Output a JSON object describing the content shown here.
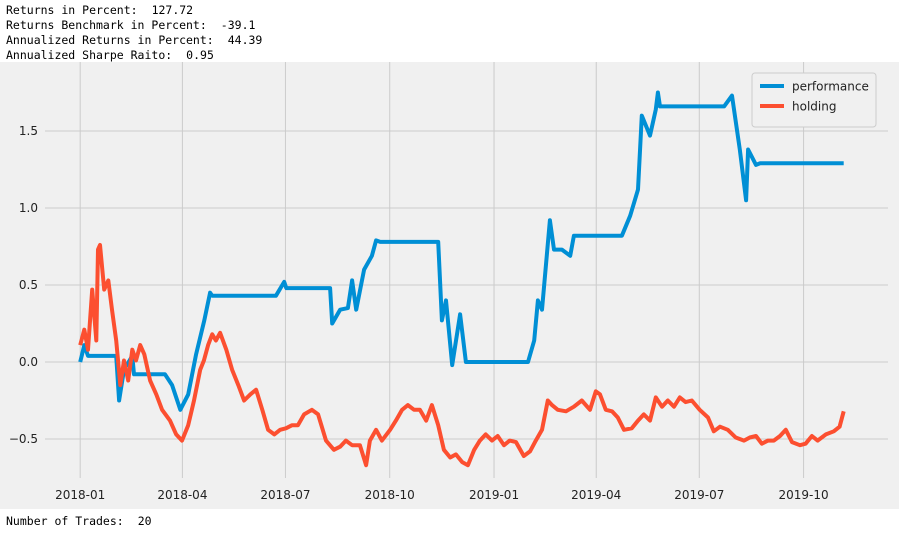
{
  "stats": [
    {
      "label": "Returns in Percent:",
      "value": 127.72
    },
    {
      "label": "Returns Benchmark in Percent:",
      "value": -39.1
    },
    {
      "label": "Annualized Returns in Percent:",
      "value": 44.39
    },
    {
      "label": "Annualized Sharpe Raito:",
      "value": 0.95
    }
  ],
  "footer": {
    "label": "Number of Trades:",
    "value": 20
  },
  "chart_data": {
    "type": "line",
    "grid": true,
    "legend": "upper right",
    "xlim": [
      2017.915,
      2019.952
    ],
    "ylim": [
      -0.753,
      1.948
    ],
    "xticks": [
      {
        "value": 2018.0,
        "label": "2018-01"
      },
      {
        "value": 2018.247,
        "label": "2018-04"
      },
      {
        "value": 2018.496,
        "label": "2018-07"
      },
      {
        "value": 2018.748,
        "label": "2018-10"
      },
      {
        "value": 2019.0,
        "label": "2019-01"
      },
      {
        "value": 2019.247,
        "label": "2019-04"
      },
      {
        "value": 2019.496,
        "label": "2019-07"
      },
      {
        "value": 2019.748,
        "label": "2019-10"
      }
    ],
    "yticks": [
      {
        "value": -0.5,
        "label": "−0.5"
      },
      {
        "value": 0,
        "label": "0.0"
      },
      {
        "value": 0.5,
        "label": "0.5"
      },
      {
        "value": 1,
        "label": "1.0"
      },
      {
        "value": 1.5,
        "label": "1.5"
      }
    ],
    "series": [
      {
        "name": "performance",
        "color": "#008fd5",
        "x": [
          2018.0,
          2018.01,
          2018.019,
          2018.087,
          2018.094,
          2018.106,
          2018.126,
          2018.13,
          2018.205,
          2018.222,
          2018.242,
          2018.261,
          2018.28,
          2018.3,
          2018.314,
          2018.319,
          2018.473,
          2018.493,
          2018.498,
          2018.604,
          2018.609,
          2018.628,
          2018.647,
          2018.657,
          2018.667,
          2018.686,
          2018.705,
          2018.715,
          2018.725,
          2018.865,
          2018.874,
          2018.884,
          2018.899,
          2018.918,
          2018.932,
          2019.082,
          2019.097,
          2019.106,
          2019.116,
          2019.135,
          2019.145,
          2019.164,
          2019.184,
          2019.193,
          2019.309,
          2019.329,
          2019.348,
          2019.357,
          2019.377,
          2019.391,
          2019.396,
          2019.401,
          2019.556,
          2019.575,
          2019.594,
          2019.609,
          2019.614,
          2019.633,
          2019.643,
          2019.845
        ],
        "values": [
          0.0,
          0.11,
          0.04,
          0.04,
          -0.25,
          -0.05,
          0.04,
          -0.08,
          -0.08,
          -0.15,
          -0.31,
          -0.21,
          0.05,
          0.27,
          0.45,
          0.43,
          0.43,
          0.52,
          0.48,
          0.48,
          0.25,
          0.34,
          0.35,
          0.53,
          0.34,
          0.6,
          0.69,
          0.79,
          0.78,
          0.78,
          0.27,
          0.4,
          -0.02,
          0.31,
          0.0,
          0.0,
          0.14,
          0.4,
          0.34,
          0.92,
          0.73,
          0.73,
          0.69,
          0.82,
          0.82,
          0.95,
          1.12,
          1.6,
          1.47,
          1.64,
          1.75,
          1.66,
          1.66,
          1.73,
          1.38,
          1.05,
          1.38,
          1.28,
          1.29,
          1.29
        ]
      },
      {
        "name": "holding",
        "color": "#fc4f30",
        "x": [
          2018.0,
          2018.01,
          2018.019,
          2018.029,
          2018.039,
          2018.043,
          2018.048,
          2018.058,
          2018.068,
          2018.077,
          2018.087,
          2018.097,
          2018.106,
          2018.116,
          2018.126,
          2018.135,
          2018.145,
          2018.155,
          2018.169,
          2018.184,
          2018.198,
          2018.217,
          2018.232,
          2018.246,
          2018.261,
          2018.275,
          2018.29,
          2018.299,
          2018.309,
          2018.319,
          2018.328,
          2018.338,
          2018.353,
          2018.367,
          2018.382,
          2018.396,
          2018.411,
          2018.425,
          2018.44,
          2018.454,
          2018.469,
          2018.483,
          2018.497,
          2018.512,
          2018.526,
          2018.541,
          2018.56,
          2018.575,
          2018.594,
          2018.613,
          2018.628,
          2018.642,
          2018.657,
          2018.676,
          2018.691,
          2018.7,
          2018.715,
          2018.729,
          2018.749,
          2018.763,
          2018.778,
          2018.792,
          2018.807,
          2018.821,
          2018.836,
          2018.85,
          2018.865,
          2018.879,
          2018.894,
          2018.908,
          2018.923,
          2018.937,
          2018.952,
          2018.966,
          2018.98,
          2018.995,
          2019.009,
          2019.024,
          2019.038,
          2019.053,
          2019.072,
          2019.087,
          2019.101,
          2019.116,
          2019.13,
          2019.14,
          2019.154,
          2019.174,
          2019.193,
          2019.212,
          2019.232,
          2019.246,
          2019.256,
          2019.27,
          2019.285,
          2019.299,
          2019.314,
          2019.333,
          2019.348,
          2019.362,
          2019.377,
          2019.391,
          2019.406,
          2019.42,
          2019.435,
          2019.449,
          2019.463,
          2019.478,
          2019.497,
          2019.517,
          2019.531,
          2019.546,
          2019.565,
          2019.584,
          2019.604,
          2019.618,
          2019.633,
          2019.647,
          2019.662,
          2019.676,
          2019.691,
          2019.705,
          2019.72,
          2019.739,
          2019.753,
          2019.768,
          2019.782,
          2019.802,
          2019.821,
          2019.835,
          2019.845
        ],
        "values": [
          0.11,
          0.21,
          0.08,
          0.47,
          0.14,
          0.73,
          0.76,
          0.47,
          0.53,
          0.34,
          0.14,
          -0.15,
          0.01,
          -0.12,
          0.08,
          0.01,
          0.11,
          0.05,
          -0.12,
          -0.21,
          -0.31,
          -0.38,
          -0.47,
          -0.51,
          -0.41,
          -0.25,
          -0.05,
          0.01,
          0.11,
          0.18,
          0.14,
          0.19,
          0.08,
          -0.05,
          -0.15,
          -0.25,
          -0.21,
          -0.18,
          -0.31,
          -0.44,
          -0.47,
          -0.44,
          -0.43,
          -0.41,
          -0.41,
          -0.34,
          -0.31,
          -0.34,
          -0.51,
          -0.57,
          -0.55,
          -0.51,
          -0.54,
          -0.54,
          -0.67,
          -0.51,
          -0.44,
          -0.51,
          -0.44,
          -0.38,
          -0.31,
          -0.28,
          -0.31,
          -0.31,
          -0.38,
          -0.28,
          -0.41,
          -0.57,
          -0.62,
          -0.6,
          -0.65,
          -0.67,
          -0.57,
          -0.51,
          -0.47,
          -0.51,
          -0.48,
          -0.54,
          -0.51,
          -0.52,
          -0.61,
          -0.58,
          -0.51,
          -0.44,
          -0.25,
          -0.28,
          -0.31,
          -0.32,
          -0.29,
          -0.25,
          -0.31,
          -0.19,
          -0.21,
          -0.31,
          -0.32,
          -0.36,
          -0.44,
          -0.43,
          -0.38,
          -0.34,
          -0.38,
          -0.23,
          -0.29,
          -0.25,
          -0.29,
          -0.23,
          -0.26,
          -0.25,
          -0.31,
          -0.36,
          -0.45,
          -0.42,
          -0.44,
          -0.49,
          -0.51,
          -0.49,
          -0.48,
          -0.53,
          -0.51,
          -0.51,
          -0.48,
          -0.44,
          -0.52,
          -0.54,
          -0.53,
          -0.48,
          -0.51,
          -0.47,
          -0.45,
          -0.42,
          -0.32
        ]
      }
    ]
  }
}
